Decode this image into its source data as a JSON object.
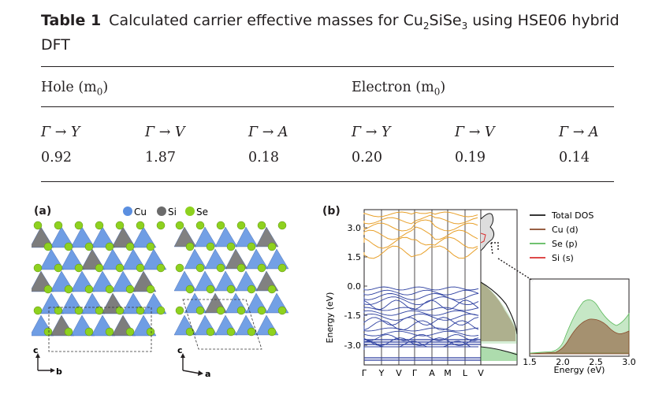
{
  "caption": {
    "label": "Table 1",
    "text_prefix": "Calculated carrier effective masses for Cu",
    "sub1": "2",
    "text_mid": "SiSe",
    "sub2": "3",
    "text_suffix": " using HSE06 hybrid DFT"
  },
  "table": {
    "hole_header": "Hole (m",
    "electron_header": "Electron (m",
    "header_sub": "0",
    "header_close": ")",
    "directions": [
      "Γ → Y",
      "Γ → V",
      "Γ → A",
      "Γ → Y",
      "Γ → V",
      "Γ → A"
    ],
    "values": [
      "0.92",
      "1.87",
      "0.18",
      "0.20",
      "0.19",
      "0.14"
    ]
  },
  "figure": {
    "panel_a_label": "(a)",
    "panel_b_label": "(b)",
    "legend_a": [
      "Cu",
      "Si",
      "Se"
    ],
    "axes_left": {
      "up": "c",
      "right": "b"
    },
    "axes_right": {
      "up": "c",
      "right": "a"
    },
    "energy_label": "Energy (eV)",
    "energy_ticks": [
      "3.0",
      "1.5",
      "0.0",
      "-1.5",
      "-3.0"
    ],
    "kpath": [
      "Γ",
      "Y",
      "V",
      "Γ",
      "A",
      "M",
      "L",
      "V"
    ],
    "dos_legend": [
      "Total DOS",
      "Cu (d)",
      "Se (p)",
      "Si (s)"
    ],
    "inset_xlabel": "Energy  (eV)",
    "inset_ticks": [
      "1.5",
      "2.0",
      "2.5",
      "3.0"
    ]
  },
  "colors": {
    "cu": "#5b8fe0",
    "si": "#6b6b6b",
    "se": "#8ed11f",
    "conduction": "#e8a02a",
    "valence": "#2c3fa0",
    "total_dos": "#1a1a1a",
    "cu_d": "#8a4a2a",
    "se_p": "#5cba5c",
    "si_s": "#d93030"
  }
}
